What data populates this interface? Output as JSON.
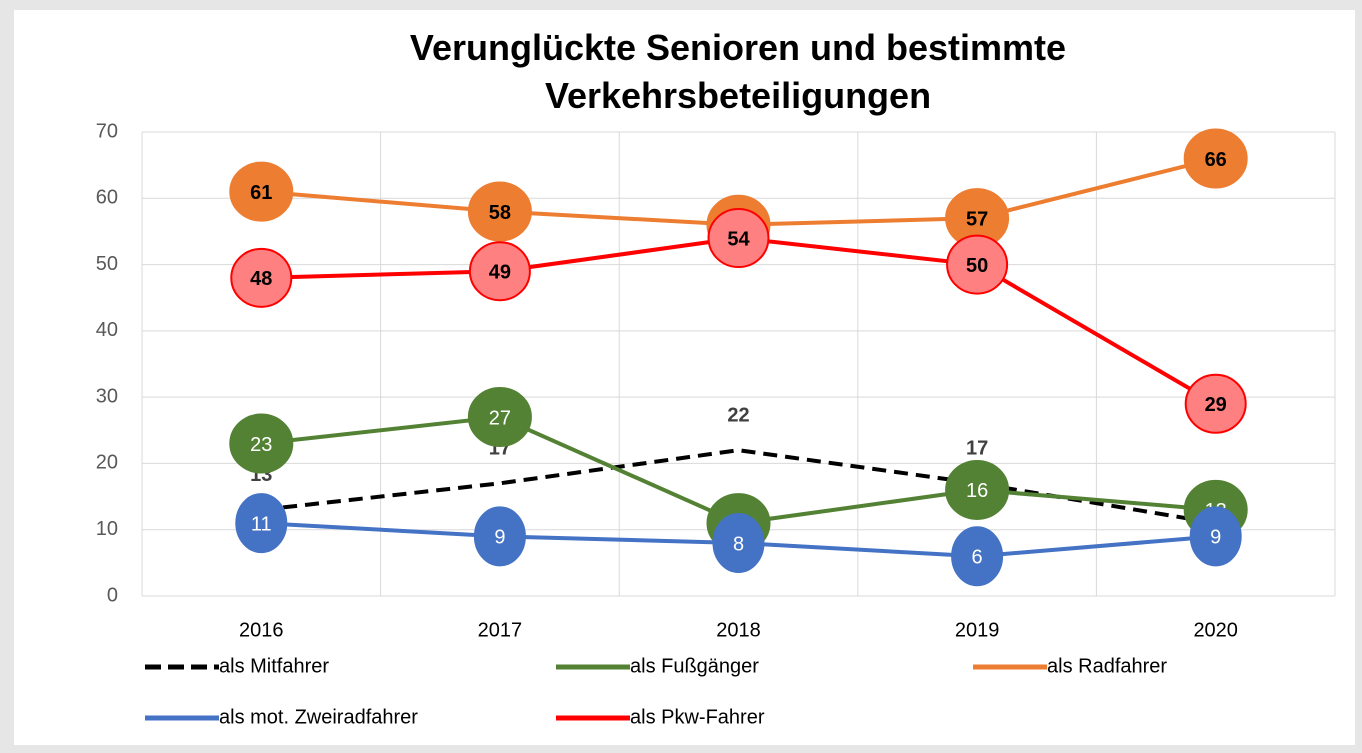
{
  "chart_data": {
    "type": "line",
    "title": "Verunglückte Senioren und bestimmte Verkehrsbeteiligungen",
    "categories": [
      "2016",
      "2017",
      "2018",
      "2019",
      "2020"
    ],
    "series": [
      {
        "name": "als Mitfahrer",
        "color": "#000000",
        "dashed": true,
        "values": [
          13,
          17,
          22,
          17,
          11
        ]
      },
      {
        "name": "als Fußgänger",
        "color": "#548235",
        "values": [
          23,
          27,
          11,
          16,
          13
        ]
      },
      {
        "name": "als Radfahrer",
        "color": "#ed7d31",
        "values": [
          61,
          58,
          56,
          57,
          66
        ]
      },
      {
        "name": "als mot. Zweiradfahrer",
        "color": "#4472c4",
        "values": [
          11,
          9,
          8,
          6,
          9
        ]
      },
      {
        "name": "als Pkw-Fahrer",
        "color": "#ff0000",
        "values": [
          48,
          49,
          54,
          50,
          29
        ]
      }
    ],
    "ylim": [
      0,
      70
    ],
    "yticks": [
      0,
      10,
      20,
      30,
      40,
      50,
      60,
      70
    ],
    "grid": true
  }
}
